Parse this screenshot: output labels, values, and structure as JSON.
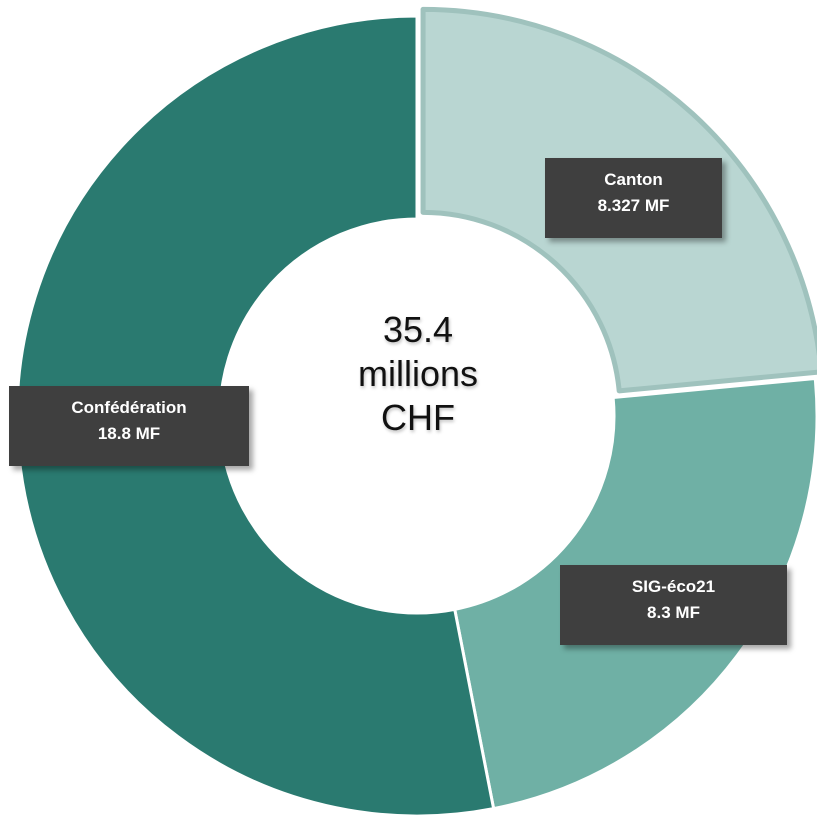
{
  "chart_data": {
    "type": "pie",
    "variant": "donut",
    "slices": [
      {
        "name": "Canton",
        "value": 8.327,
        "label": "8.327 MF",
        "color": "#b9d6d2",
        "exploded": true
      },
      {
        "name": "SIG-éco21",
        "value": 8.3,
        "label": "8.3 MF",
        "color": "#6fb0a5",
        "exploded": false
      },
      {
        "name": "Confédération",
        "value": 18.8,
        "label": "18.8 MF",
        "color": "#2a7a70",
        "exploded": false
      }
    ],
    "center": {
      "lines": [
        "35.4",
        "millions",
        "CHF"
      ]
    },
    "legend": "none"
  }
}
